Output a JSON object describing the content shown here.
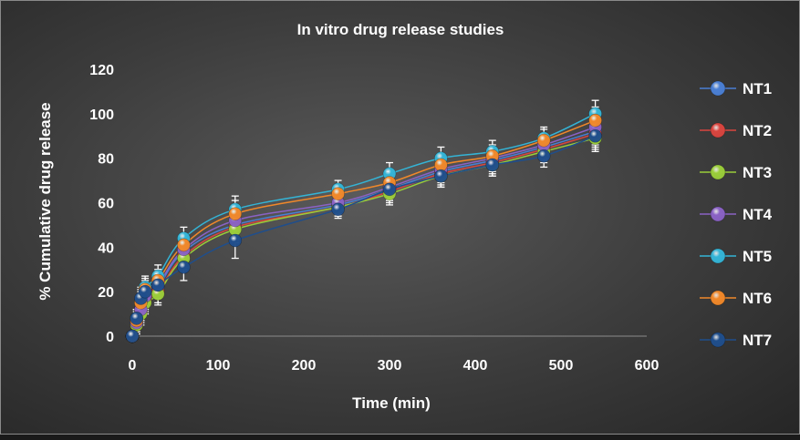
{
  "chart_data": {
    "type": "scatter",
    "title": "In vitro drug release studies",
    "xlabel": "Time (min)",
    "ylabel": "% Cumulative drug release",
    "xlim": [
      0,
      600
    ],
    "ylim": [
      0,
      120
    ],
    "xticks": [
      0,
      100,
      200,
      300,
      400,
      500,
      600
    ],
    "yticks": [
      0,
      20,
      40,
      60,
      80,
      100,
      120
    ],
    "grid": false,
    "legend_position": "right",
    "x": [
      0,
      5,
      10,
      15,
      30,
      60,
      120,
      240,
      300,
      360,
      420,
      480,
      540
    ],
    "series": [
      {
        "name": "NT1",
        "color": "#4a7fd4",
        "values": [
          0,
          6,
          12,
          17,
          22,
          38,
          50,
          59,
          66,
          74,
          79,
          85,
          92
        ],
        "error": [
          0,
          4,
          5,
          5,
          5,
          5,
          6,
          4,
          5,
          5,
          5,
          5,
          6
        ]
      },
      {
        "name": "NT2",
        "color": "#d9453f",
        "values": [
          0,
          5,
          11,
          16,
          20,
          36,
          49,
          58,
          65,
          73,
          78,
          84,
          91
        ],
        "error": [
          0,
          4,
          5,
          5,
          5,
          5,
          6,
          4,
          5,
          5,
          5,
          5,
          6
        ]
      },
      {
        "name": "NT3",
        "color": "#9acd3a",
        "values": [
          0,
          5,
          10,
          15,
          19,
          35,
          48,
          58,
          64,
          72,
          77,
          83,
          89
        ],
        "error": [
          0,
          4,
          5,
          5,
          5,
          5,
          6,
          4,
          5,
          5,
          5,
          5,
          6
        ]
      },
      {
        "name": "NT4",
        "color": "#8a62c4",
        "values": [
          0,
          6,
          12,
          18,
          23,
          39,
          52,
          60,
          67,
          75,
          80,
          86,
          94
        ],
        "error": [
          0,
          4,
          5,
          5,
          5,
          5,
          6,
          4,
          5,
          5,
          5,
          5,
          6
        ]
      },
      {
        "name": "NT5",
        "color": "#34b4d6",
        "values": [
          0,
          8,
          16,
          22,
          27,
          44,
          57,
          66,
          73,
          80,
          83,
          89,
          100
        ],
        "error": [
          0,
          4,
          5,
          5,
          5,
          5,
          6,
          4,
          5,
          5,
          5,
          5,
          6
        ]
      },
      {
        "name": "NT6",
        "color": "#f0882a",
        "values": [
          0,
          7,
          15,
          21,
          25,
          41,
          55,
          64,
          69,
          77,
          81,
          88,
          97
        ],
        "error": [
          0,
          4,
          5,
          5,
          5,
          5,
          6,
          4,
          5,
          5,
          5,
          5,
          6
        ]
      },
      {
        "name": "NT7",
        "color": "#1f4e8c",
        "values": [
          0,
          8,
          17,
          20,
          23,
          31,
          43,
          57,
          66,
          72,
          77,
          81,
          90
        ],
        "error": [
          0,
          4,
          5,
          5,
          5,
          6,
          8,
          4,
          5,
          5,
          5,
          5,
          6
        ]
      }
    ]
  }
}
